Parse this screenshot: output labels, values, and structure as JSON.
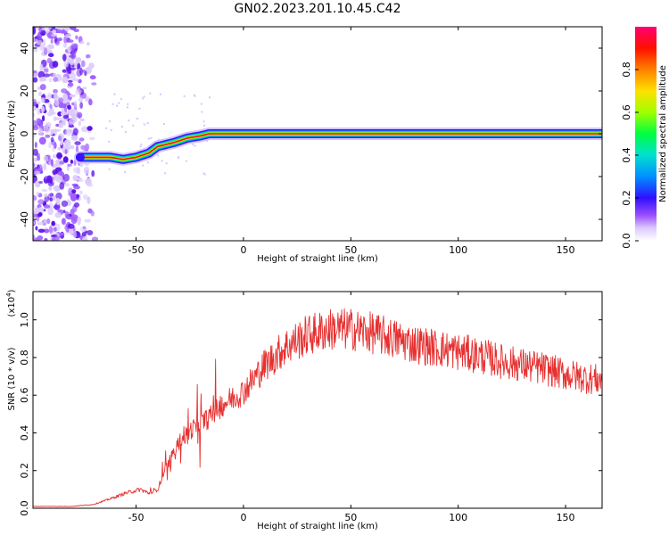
{
  "title": "GN02.2023.201.10.45.C42",
  "colors": {
    "signal": "#e63030",
    "scatter": "#7722ee",
    "colormap": [
      "#dcd0f8",
      "#b070ff",
      "#5a00ee",
      "#1a1aff",
      "#00b0ff",
      "#00e0c0",
      "#00ff00",
      "#b0ff00",
      "#ffd000",
      "#ff6000",
      "#ff0000",
      "#ff0066"
    ]
  },
  "chart_data": [
    {
      "type": "heatmap",
      "title": "",
      "xlabel": "Height of straight line (km)",
      "ylabel": "Frequency (Hz)",
      "xlim": [
        -98,
        167
      ],
      "ylim": [
        -50,
        50
      ],
      "xticks": [
        "-50",
        "0",
        "50",
        "100",
        "150"
      ],
      "yticks": [
        "-40",
        "-20",
        "0",
        "20",
        "40"
      ],
      "noise_region_x": [
        -98,
        -68
      ],
      "ridge": {
        "x": [
          -76,
          -70,
          -62,
          -56,
          -50,
          -44,
          -40,
          -36,
          -32,
          -26,
          -20,
          -16,
          0,
          167
        ],
        "freq": [
          -11,
          -11,
          -11,
          -12,
          -11,
          -9,
          -6,
          -5,
          -4,
          -2,
          -1,
          0,
          0,
          0
        ]
      },
      "colorbar": {
        "label": "Normalized spectral amplitude",
        "range": [
          0,
          1
        ],
        "ticks": [
          "0.0",
          "0.2",
          "0.4",
          "0.6",
          "0.8"
        ]
      }
    },
    {
      "type": "line",
      "title": "",
      "xlabel": "Height of straight line (km)",
      "ylabel": "SNR (10 * v/v)",
      "yscale_label": "(x10",
      "yscale_exp": "4",
      "yscale_close": ")",
      "xlim": [
        -98,
        167
      ],
      "ylim": [
        0,
        1.15
      ],
      "xticks": [
        "-50",
        "0",
        "50",
        "100",
        "150"
      ],
      "yticks": [
        "0.0",
        "0.2",
        "0.4",
        "0.6",
        "0.8",
        "1.0"
      ],
      "envelope_x": [
        -98,
        -80,
        -70,
        -62,
        -55,
        -48,
        -44,
        -40,
        -36,
        -30,
        -24,
        -16,
        -10,
        0,
        10,
        20,
        30,
        40,
        50,
        60,
        70,
        80,
        90,
        100,
        110,
        120,
        130,
        140,
        150,
        160,
        167
      ],
      "envelope_y": [
        0.01,
        0.01,
        0.02,
        0.05,
        0.08,
        0.1,
        0.08,
        0.1,
        0.22,
        0.35,
        0.42,
        0.48,
        0.55,
        0.62,
        0.76,
        0.86,
        0.92,
        0.95,
        0.95,
        0.93,
        0.9,
        0.87,
        0.85,
        0.83,
        0.81,
        0.78,
        0.76,
        0.74,
        0.71,
        0.69,
        0.68
      ],
      "noise_amplitude_fraction": 0.12
    }
  ]
}
